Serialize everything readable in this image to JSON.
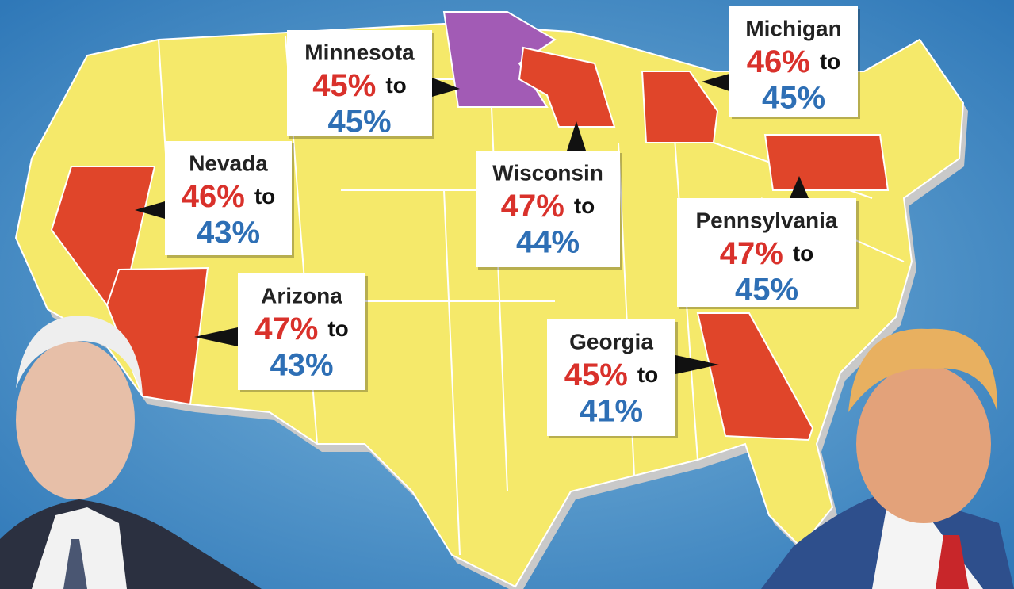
{
  "connector": "to",
  "states": [
    {
      "name": "Minnesota",
      "red": "45%",
      "blue": "45%"
    },
    {
      "name": "Michigan",
      "red": "46%",
      "blue": "45%"
    },
    {
      "name": "Nevada",
      "red": "46%",
      "blue": "43%"
    },
    {
      "name": "Wisconsin",
      "red": "47%",
      "blue": "44%"
    },
    {
      "name": "Pennsylvania",
      "red": "47%",
      "blue": "45%"
    },
    {
      "name": "Arizona",
      "red": "47%",
      "blue": "43%"
    },
    {
      "name": "Georgia",
      "red": "45%",
      "blue": "41%"
    }
  ]
}
